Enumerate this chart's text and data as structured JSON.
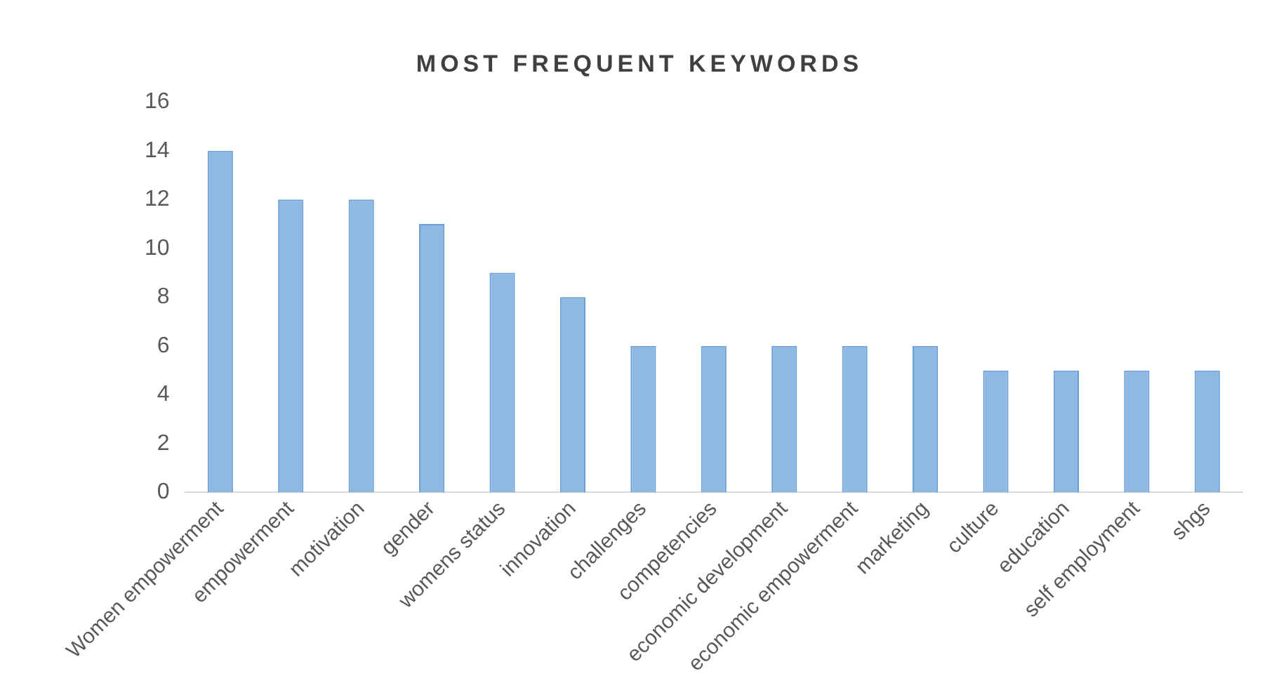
{
  "chart_data": {
    "type": "bar",
    "title": "MOST FREQUENT KEYWORDS",
    "categories": [
      "Women empowerment",
      "empowerment",
      "motivation",
      "gender",
      "womens status",
      "innovation",
      "challenges",
      "competencies",
      "economic development",
      "economic empowerment",
      "marketing",
      "culture",
      "education",
      "self employment",
      "shgs"
    ],
    "values": [
      14,
      12,
      12,
      11,
      9,
      8,
      6,
      6,
      6,
      6,
      6,
      5,
      5,
      5,
      5
    ],
    "color": "#8fb8e3",
    "ylim": [
      0,
      16
    ],
    "yticks": [
      0,
      2,
      4,
      6,
      8,
      10,
      12,
      14,
      16
    ],
    "grid": false,
    "legend": false
  }
}
